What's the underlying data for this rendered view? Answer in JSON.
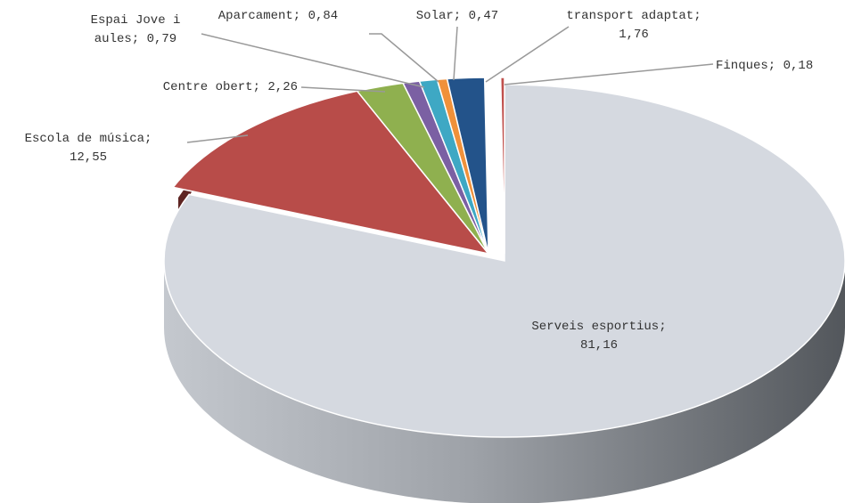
{
  "chart_data": {
    "type": "pie",
    "style": "3d-exploded",
    "title": "",
    "slices": [
      {
        "name": "Serveis esportius",
        "value": 81.16,
        "label_lines": [
          "Serveis esportius;",
          "81,16"
        ],
        "color": "#d5d9e0"
      },
      {
        "name": "Escola de música",
        "value": 12.55,
        "label_lines": [
          "Escola de música;",
          "12,55"
        ],
        "color": "#b84c49"
      },
      {
        "name": "Centre obert",
        "value": 2.26,
        "label_lines": [
          "Centre obert; 2,26"
        ],
        "color": "#8fb04f"
      },
      {
        "name": "Espai Jove i aules",
        "value": 0.79,
        "label_lines": [
          "Espai Jove i",
          "aules; 0,79"
        ],
        "color": "#7b60a3"
      },
      {
        "name": "Aparcament",
        "value": 0.84,
        "label_lines": [
          "Aparcament; 0,84"
        ],
        "color": "#3ea8c4"
      },
      {
        "name": "Solar",
        "value": 0.47,
        "label_lines": [
          "Solar; 0,47"
        ],
        "color": "#f0913a"
      },
      {
        "name": "transport adaptat",
        "value": 1.76,
        "label_lines": [
          "transport adaptat;",
          "1,76"
        ],
        "color": "#23538a"
      },
      {
        "name": "Finques",
        "value": 0.18,
        "label_lines": [
          "Finques; 0,18"
        ],
        "color": "#c0504d"
      }
    ]
  }
}
